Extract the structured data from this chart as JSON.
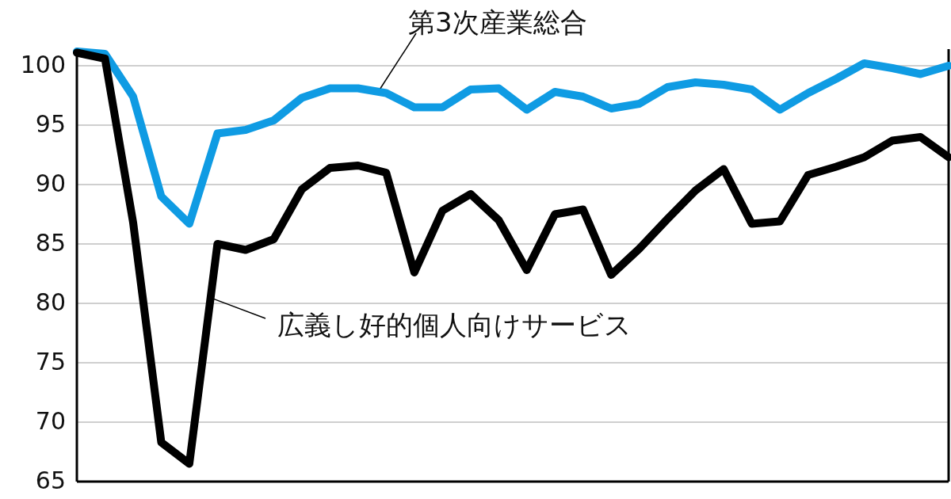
{
  "chart_data": {
    "type": "line",
    "categories": [
      null,
      null,
      null,
      null,
      null,
      null,
      null,
      null,
      null,
      null,
      null,
      null,
      null,
      null,
      null,
      null,
      null,
      null,
      null,
      null,
      null,
      null,
      null,
      null,
      null,
      null,
      null,
      null,
      null,
      null,
      null,
      null
    ],
    "ylim": [
      65,
      101.4
    ],
    "yticks": [
      65,
      70,
      75,
      80,
      85,
      90,
      95,
      100
    ],
    "grid": "y",
    "marker": "none",
    "line_style": "solid",
    "series": [
      {
        "name": "第3次産業総合",
        "color": "#0f9be3",
        "values": [
          101.2,
          101.0,
          97.4,
          89.0,
          86.7,
          94.3,
          94.6,
          95.4,
          97.3,
          98.1,
          98.1,
          97.7,
          96.5,
          96.5,
          98.0,
          98.1,
          96.3,
          97.8,
          97.4,
          96.4,
          96.8,
          98.2,
          98.6,
          98.4,
          98.0,
          96.3,
          97.7,
          98.9,
          100.2,
          99.8,
          99.3,
          100.0
        ]
      },
      {
        "name": "広義し好的個人向けサービス",
        "color": "#000000",
        "values": [
          101.1,
          100.6,
          86.8,
          68.3,
          66.5,
          85.0,
          84.5,
          85.4,
          89.6,
          91.4,
          91.6,
          91.0,
          82.6,
          87.8,
          89.2,
          87.0,
          82.8,
          87.5,
          87.9,
          82.4,
          84.6,
          87.1,
          89.5,
          91.3,
          86.7,
          86.9,
          90.8,
          91.5,
          92.3,
          93.7,
          94.0,
          92.3
        ]
      }
    ]
  }
}
